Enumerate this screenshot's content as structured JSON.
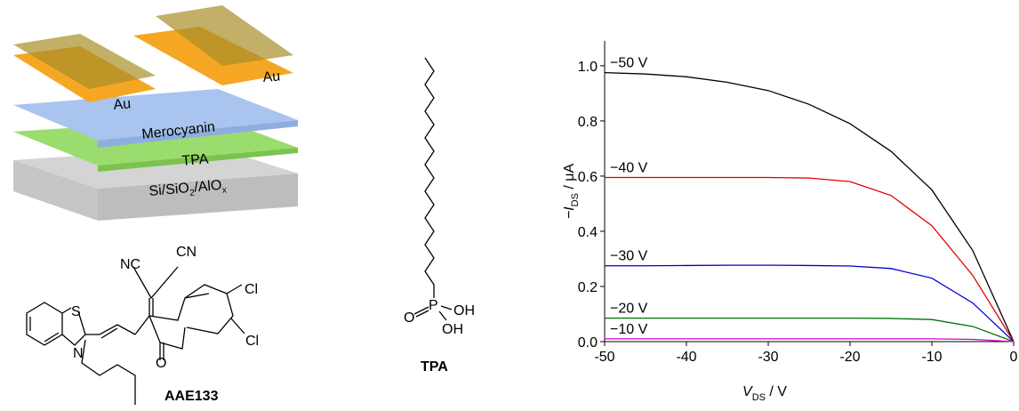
{
  "device": {
    "electrode_left": "Au",
    "electrode_right": "Au",
    "semiconductor": "Merocyanin",
    "monolayer": "TPA",
    "substrate": [
      "Si/SiO",
      "2",
      "/AlO",
      "x"
    ]
  },
  "molecule_1": {
    "atoms": [
      "NC",
      "CN",
      "S",
      "N",
      "Cl",
      "Cl",
      "O"
    ],
    "name": "AAE133"
  },
  "molecule_2": {
    "atoms": [
      "O",
      "P",
      "OH",
      "OH"
    ],
    "name": "TPA"
  },
  "chart_data": {
    "type": "line",
    "x_label": [
      "V",
      "DS",
      " / V"
    ],
    "y_label": [
      "−I",
      "DS",
      " / μA"
    ],
    "x": [
      -50,
      -45,
      -40,
      -35,
      -30,
      -25,
      -20,
      -15,
      -10,
      -5,
      0
    ],
    "series": [
      {
        "name": "−50 V",
        "color": "#000000",
        "values": [
          0.975,
          0.97,
          0.96,
          0.94,
          0.91,
          0.86,
          0.79,
          0.69,
          0.55,
          0.33,
          0
        ]
      },
      {
        "name": "−40 V",
        "color": "#e00000",
        "values": [
          0.595,
          0.595,
          0.595,
          0.595,
          0.595,
          0.593,
          0.58,
          0.53,
          0.42,
          0.24,
          0
        ]
      },
      {
        "name": "−30 V",
        "color": "#0000d0",
        "values": [
          0.275,
          0.275,
          0.276,
          0.277,
          0.277,
          0.276,
          0.274,
          0.265,
          0.23,
          0.14,
          0
        ]
      },
      {
        "name": "−20 V",
        "color": "#007000",
        "values": [
          0.085,
          0.085,
          0.085,
          0.085,
          0.085,
          0.085,
          0.085,
          0.084,
          0.08,
          0.055,
          0
        ]
      },
      {
        "name": "−10 V",
        "color": "#d000d0",
        "values": [
          0.01,
          0.01,
          0.01,
          0.01,
          0.01,
          0.01,
          0.01,
          0.01,
          0.01,
          0.008,
          0
        ]
      }
    ],
    "xlim": [
      -50,
      0
    ],
    "xticks": [
      -50,
      -40,
      -30,
      -20,
      -10,
      0
    ],
    "ylim": [
      0,
      1.09
    ],
    "yticks": [
      {
        "value": 0,
        "label": "0.0"
      },
      0.2,
      0.4,
      0.6,
      0.8,
      {
        "value": 1,
        "label": "1.0"
      }
    ]
  }
}
